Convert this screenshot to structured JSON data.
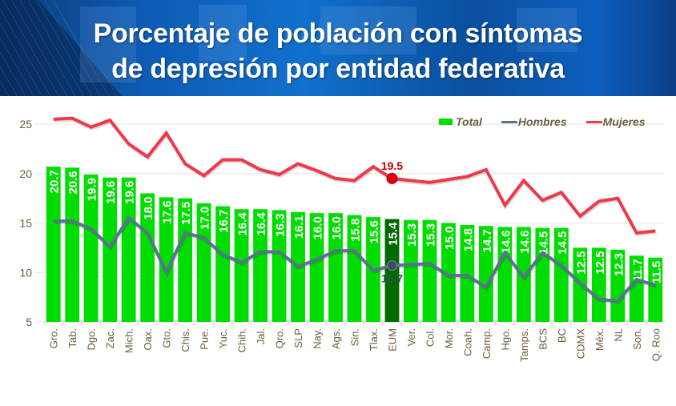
{
  "header": {
    "title_line1": "Porcentaje de población con síntomas",
    "title_line2": "de depresión por entidad federativa"
  },
  "colors": {
    "total_bar": "#00dd00",
    "highlight_bar": "#006b00",
    "hombres_line": "#5a7290",
    "mujeres_line": "#f0384a",
    "mujeres_label": "#c00000",
    "hombres_label": "#3a4a60",
    "axis_text": "#6b5e3e"
  },
  "chart_data": {
    "type": "bar",
    "title": "Porcentaje de población con síntomas de depresión por entidad federativa",
    "xlabel": "",
    "ylabel": "",
    "ylim": [
      5,
      26
    ],
    "yticks": [
      5,
      10,
      15,
      20,
      25
    ],
    "grid": true,
    "legend_position": "top-right",
    "highlight_category": "EUM",
    "categories": [
      "Gro.",
      "Tab.",
      "Dgo.",
      "Zac.",
      "Mich.",
      "Oax.",
      "Gto.",
      "Chis.",
      "Pue.",
      "Yuc.",
      "Chih.",
      "Jal.",
      "Qro.",
      "SLP",
      "Nay.",
      "Ags.",
      "Sin.",
      "Tlax.",
      "EUM",
      "Ver.",
      "Col.",
      "Mor.",
      "Coah.",
      "Camp.",
      "Hgo.",
      "Tamps.",
      "BCS",
      "BC",
      "CDMX",
      "Méx.",
      "NL",
      "Son.",
      "Q. Roo"
    ],
    "series": [
      {
        "name": "Total",
        "type": "bar",
        "values": [
          20.7,
          20.6,
          19.9,
          19.6,
          19.6,
          18.0,
          17.6,
          17.5,
          17.0,
          16.7,
          16.4,
          16.4,
          16.3,
          16.1,
          16.0,
          16.0,
          15.8,
          15.6,
          15.4,
          15.3,
          15.3,
          15.0,
          14.8,
          14.7,
          14.6,
          14.6,
          14.5,
          14.5,
          12.5,
          12.5,
          12.3,
          11.7,
          11.5
        ],
        "labels": [
          "20.7",
          "20.6",
          "19.9",
          "19.6",
          "19.6",
          "18.0",
          "17.6",
          "17.5",
          "17.0",
          "16.7",
          "16.4",
          "16.4",
          "16.3",
          "16.1",
          "16.0",
          "16.0",
          "15.8",
          "15.6",
          "15.4",
          "15.3",
          "15.3",
          "15.0",
          "14.8",
          "14.7",
          "14.6",
          "14.6",
          "14.5",
          "14.5",
          "12.5",
          "12.5",
          "12.3",
          "11.7",
          "11.5"
        ]
      },
      {
        "name": "Hombres",
        "type": "line",
        "values": [
          15.2,
          15.2,
          14.4,
          12.6,
          15.5,
          14.0,
          10.0,
          14.0,
          13.5,
          11.8,
          11.0,
          12.1,
          12.1,
          10.6,
          11.3,
          12.2,
          12.2,
          10.2,
          10.7,
          10.8,
          10.9,
          9.7,
          9.7,
          8.5,
          12.0,
          9.5,
          12.0,
          10.7,
          8.9,
          7.3,
          7.1,
          9.3,
          8.7
        ],
        "annotation": {
          "category": "EUM",
          "label": "10.7"
        }
      },
      {
        "name": "Mujeres",
        "type": "line",
        "values": [
          25.5,
          25.6,
          24.7,
          25.4,
          23.0,
          21.7,
          24.1,
          21.0,
          19.8,
          21.4,
          21.4,
          20.4,
          19.9,
          21.0,
          20.3,
          19.5,
          19.3,
          20.7,
          19.5,
          19.3,
          19.1,
          19.4,
          19.7,
          20.4,
          16.8,
          19.3,
          17.3,
          18.1,
          15.7,
          17.2,
          17.5,
          14.0,
          14.2
        ],
        "annotation": {
          "category": "EUM",
          "label": "19.5"
        }
      }
    ],
    "legend": [
      "Total",
      "Hombres",
      "Mujeres"
    ]
  }
}
